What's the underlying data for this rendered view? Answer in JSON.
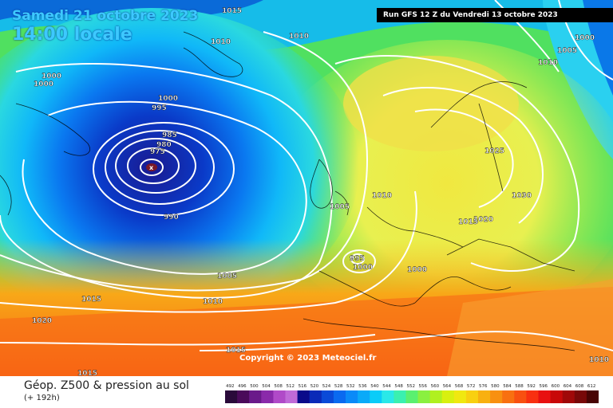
{
  "header": {
    "date": "Samedi 21 octobre 2023",
    "time": "14:00 locale",
    "run": "Run GFS 12 Z du Vendredi 13 octobre 2023"
  },
  "copyright": "Copyright © 2023 Meteociel.fr",
  "footer": {
    "title": "Géop. Z500 & pression au sol",
    "subtitle": "(+ 192h)"
  },
  "legend": {
    "values": [
      "492",
      "496",
      "500",
      "504",
      "508",
      "512",
      "516",
      "520",
      "524",
      "528",
      "532",
      "536",
      "540",
      "544",
      "548",
      "552",
      "556",
      "560",
      "564",
      "568",
      "572",
      "576",
      "580",
      "584",
      "588",
      "592",
      "596",
      "600",
      "604",
      "608",
      "612"
    ],
    "colors": [
      "#2a0a3a",
      "#4a0a5a",
      "#6a1a8a",
      "#8a2aaa",
      "#b04ac8",
      "#c06ad8",
      "#0a0a8a",
      "#0a2ab8",
      "#0a4ad8",
      "#0a6af0",
      "#0a8af8",
      "#0aaaf8",
      "#0accf8",
      "#2ae8e8",
      "#3af0b0",
      "#5af070",
      "#8af040",
      "#b0f020",
      "#d8f010",
      "#f0e810",
      "#f8d010",
      "#f8b010",
      "#f89010",
      "#f87010",
      "#f85010",
      "#f83010",
      "#e81010",
      "#c80808",
      "#a00808",
      "#780808",
      "#480404"
    ]
  },
  "isobars": [
    {
      "label": "1015",
      "pos": "top"
    },
    {
      "label": "1010",
      "pos": "top-left"
    },
    {
      "label": "1010",
      "pos": "north-atlantic"
    },
    {
      "label": "1000",
      "pos": "greenland-1"
    },
    {
      "label": "1000",
      "pos": "greenland-2"
    },
    {
      "label": "1000",
      "pos": "mid"
    },
    {
      "label": "995",
      "pos": "mid"
    },
    {
      "label": "985",
      "pos": "low"
    },
    {
      "label": "980",
      "pos": "low"
    },
    {
      "label": "975",
      "pos": "low"
    },
    {
      "label": "990",
      "pos": "low-south"
    },
    {
      "label": "1005",
      "pos": "ireland"
    },
    {
      "label": "1010",
      "pos": "north-sea"
    },
    {
      "label": "1005",
      "pos": "atlantic"
    },
    {
      "label": "1015",
      "pos": "atlantic-south"
    },
    {
      "label": "1010",
      "pos": "iberia-west"
    },
    {
      "label": "1020",
      "pos": "azores"
    },
    {
      "label": "1015",
      "pos": "africa"
    },
    {
      "label": "1015",
      "pos": "bottom-left"
    },
    {
      "label": "995",
      "pos": "biscay"
    },
    {
      "label": "1000",
      "pos": "biscay"
    },
    {
      "label": "1000",
      "pos": "france"
    },
    {
      "label": "1015",
      "pos": "poland"
    },
    {
      "label": "1020",
      "pos": "poland"
    },
    {
      "label": "1025",
      "pos": "baltic"
    },
    {
      "label": "1030",
      "pos": "russia"
    },
    {
      "label": "1010",
      "pos": "turkey"
    },
    {
      "label": "1000",
      "pos": "arctic"
    },
    {
      "label": "1005",
      "pos": "arctic"
    },
    {
      "label": "1010",
      "pos": "arctic"
    }
  ]
}
